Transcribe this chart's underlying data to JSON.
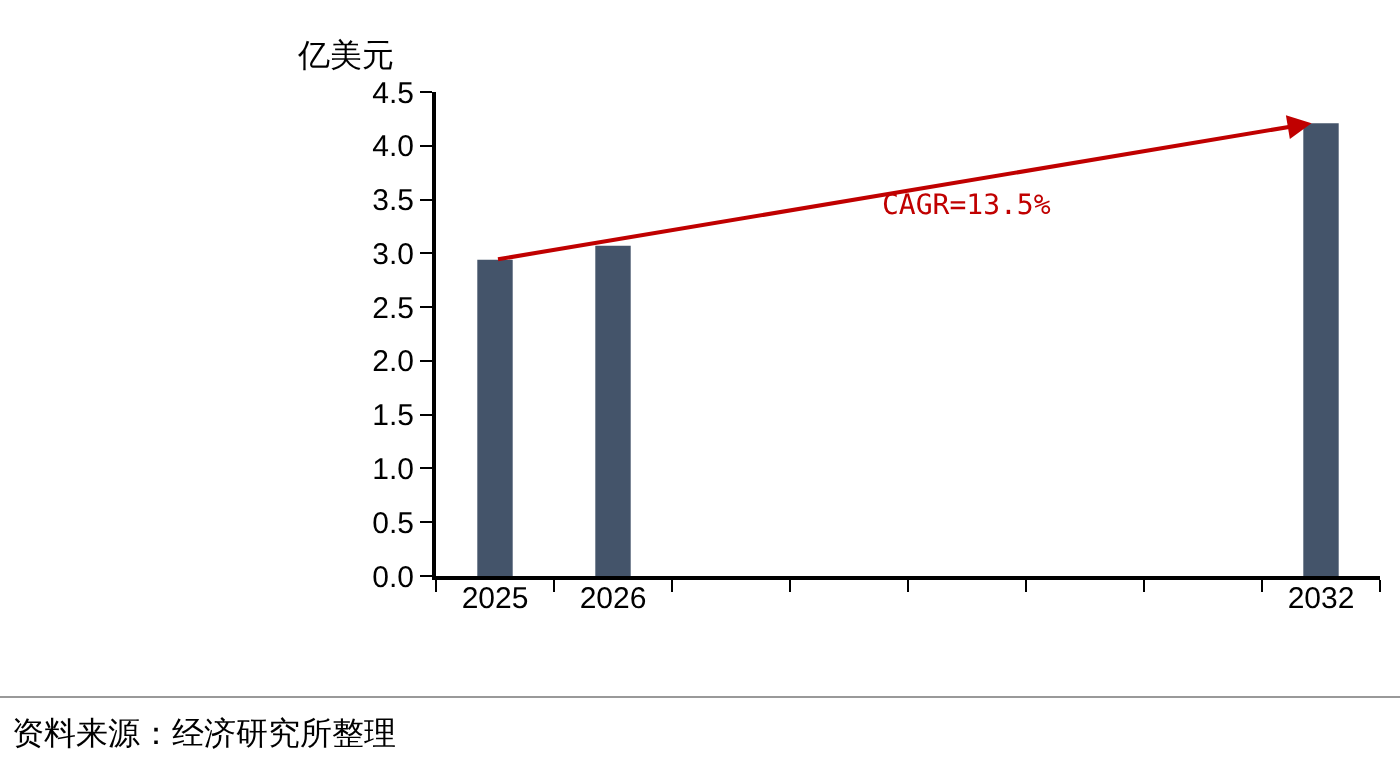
{
  "chart_data": {
    "type": "bar",
    "ylabel": "亿美元",
    "categories": [
      "2025",
      "2026",
      null,
      null,
      null,
      null,
      null,
      "2032"
    ],
    "values": [
      2.94,
      3.07,
      null,
      null,
      null,
      null,
      null,
      4.21
    ],
    "color": "#44546a",
    "ylim": [
      0,
      4.5
    ],
    "yticks": [
      {
        "value": 0,
        "label": "0.0"
      },
      {
        "value": 0.5,
        "label": "0.5"
      },
      {
        "value": 1,
        "label": "1.0"
      },
      {
        "value": 1.5,
        "label": "1.5"
      },
      {
        "value": 2,
        "label": "2.0"
      },
      {
        "value": 2.5,
        "label": "2.5"
      },
      {
        "value": 3,
        "label": "3.0"
      },
      {
        "value": 3.5,
        "label": "3.5"
      },
      {
        "value": 4,
        "label": "4.0"
      },
      {
        "value": 4.5,
        "label": "4.5"
      }
    ],
    "grid": false,
    "legend": false,
    "annotations": [
      {
        "text": "CAGR=13.5%"
      },
      "资料来源：经济研究所整理"
    ]
  }
}
